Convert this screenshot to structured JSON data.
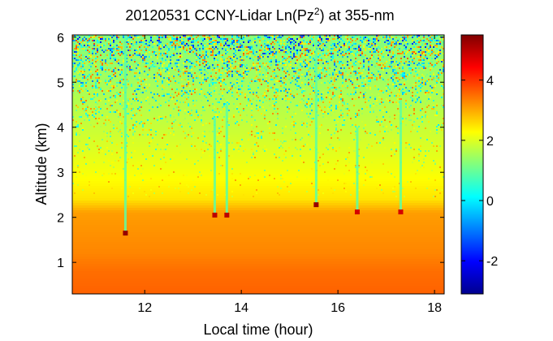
{
  "chart_data": {
    "type": "heatmap",
    "title_main": "20120531 CCNY-Lidar Ln(Pz",
    "title_sup": "2",
    "title_tail": ") at 355-nm",
    "xlabel": "Local time (hour)",
    "ylabel": "Altitude (km)",
    "xlim": [
      10.5,
      18.2
    ],
    "ylim": [
      0.3,
      6.05
    ],
    "x_ticks": [
      12,
      14,
      16,
      18
    ],
    "y_ticks": [
      1,
      2,
      3,
      4,
      5,
      6
    ],
    "color_scale": {
      "colormap": "jet",
      "range": [
        -3.1,
        5.5
      ],
      "ticks": [
        -2,
        0,
        2,
        4
      ]
    },
    "profile": [
      {
        "altitude": 0.3,
        "value": 3.6
      },
      {
        "altitude": 0.8,
        "value": 3.5
      },
      {
        "altitude": 1.2,
        "value": 3.3
      },
      {
        "altitude": 2.1,
        "value": 3.1
      },
      {
        "altitude": 2.4,
        "value": 2.5
      },
      {
        "altitude": 3.0,
        "value": 2.2
      },
      {
        "altitude": 4.0,
        "value": 1.8
      },
      {
        "altitude": 5.0,
        "value": 1.5
      },
      {
        "altitude": 6.05,
        "value": 1.2
      }
    ],
    "cloud_features": [
      {
        "time": 11.6,
        "altitude": 1.65,
        "top": 6.05,
        "value": 5.3
      },
      {
        "time": 13.45,
        "altitude": 2.05,
        "top": 4.2,
        "value": 5.0
      },
      {
        "time": 13.7,
        "altitude": 2.05,
        "top": 4.5,
        "value": 5.0
      },
      {
        "time": 15.55,
        "altitude": 2.28,
        "top": 6.05,
        "value": 5.3
      },
      {
        "time": 16.4,
        "altitude": 2.12,
        "top": 4.0,
        "value": 4.8
      },
      {
        "time": 17.3,
        "altitude": 2.12,
        "top": 4.6,
        "value": 4.8
      }
    ]
  }
}
